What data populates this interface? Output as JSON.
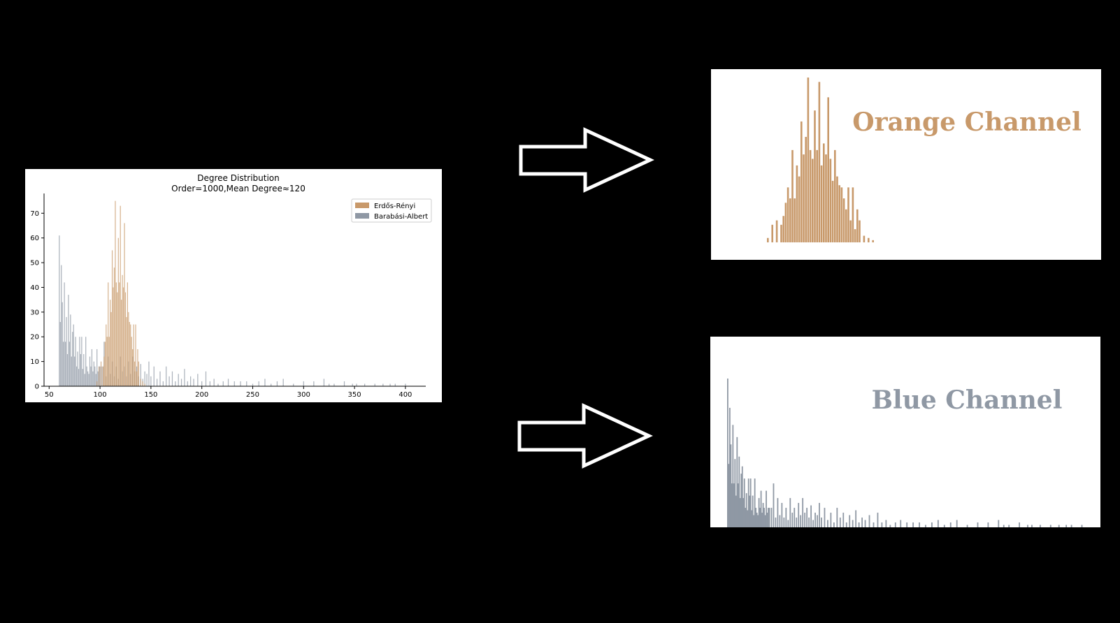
{
  "colors": {
    "background": "#000000",
    "orange": "#c8996a",
    "blue": "#8f98a4",
    "axis": "#000000"
  },
  "icons": [
    "right-arrow-icon",
    "right-arrow-icon"
  ],
  "chart_data": {
    "type": "bar",
    "title": "Degree Distribution",
    "subtitle": "Order=1000,Mean Degree≈120",
    "xlim": [
      45,
      420
    ],
    "ylim": [
      0,
      78
    ],
    "xticks": [
      50,
      100,
      150,
      200,
      250,
      300,
      350,
      400
    ],
    "yticks": [
      0,
      10,
      20,
      30,
      40,
      50,
      60,
      70
    ],
    "legend_position": "top-right",
    "series": [
      {
        "name": "Erdős-Rényi",
        "color": "#c8996a",
        "x": [
          97,
          99,
          101,
          103,
          104,
          105,
          106,
          107,
          108,
          109,
          110,
          111,
          112,
          113,
          114,
          115,
          116,
          117,
          118,
          119,
          120,
          121,
          122,
          123,
          124,
          125,
          126,
          127,
          128,
          129,
          130,
          131,
          132,
          133,
          134,
          135,
          136,
          137,
          138,
          140,
          142,
          144
        ],
        "values": [
          2,
          8,
          10,
          8,
          12,
          18,
          25,
          20,
          42,
          20,
          35,
          30,
          55,
          40,
          48,
          75,
          42,
          38,
          60,
          42,
          73,
          35,
          45,
          40,
          66,
          38,
          28,
          42,
          30,
          26,
          25,
          20,
          15,
          25,
          10,
          25,
          6,
          15,
          10,
          3,
          2,
          1
        ]
      },
      {
        "name": "Barabási-Albert",
        "color": "#8f98a4",
        "x": [
          60,
          61,
          62,
          63,
          64,
          65,
          66,
          67,
          68,
          69,
          70,
          71,
          72,
          73,
          74,
          75,
          76,
          77,
          78,
          79,
          80,
          81,
          82,
          83,
          84,
          85,
          86,
          87,
          88,
          89,
          90,
          91,
          92,
          93,
          94,
          95,
          96,
          97,
          98,
          99,
          100,
          102,
          104,
          106,
          108,
          110,
          112,
          114,
          116,
          118,
          120,
          122,
          124,
          126,
          128,
          130,
          132,
          134,
          136,
          138,
          140,
          142,
          144,
          146,
          148,
          150,
          153,
          156,
          159,
          162,
          165,
          168,
          171,
          174,
          177,
          180,
          183,
          186,
          189,
          192,
          196,
          200,
          204,
          208,
          212,
          216,
          221,
          226,
          232,
          238,
          244,
          250,
          256,
          262,
          268,
          274,
          280,
          290,
          300,
          310,
          320,
          325,
          330,
          340,
          348,
          352,
          360,
          370,
          378,
          385,
          390,
          400
        ],
        "values": [
          61,
          26,
          49,
          34,
          18,
          42,
          18,
          28,
          13,
          37,
          18,
          29,
          12,
          22,
          25,
          12,
          20,
          8,
          14,
          7,
          20,
          13,
          20,
          7,
          13,
          5,
          20,
          8,
          6,
          5,
          12,
          8,
          15,
          6,
          10,
          8,
          5,
          15,
          6,
          8,
          8,
          8,
          18,
          4,
          12,
          5,
          10,
          4,
          8,
          3,
          12,
          6,
          8,
          4,
          10,
          5,
          12,
          6,
          8,
          4,
          9,
          3,
          6,
          5,
          10,
          4,
          8,
          3,
          6,
          2,
          8,
          4,
          6,
          2,
          5,
          3,
          7,
          2,
          4,
          3,
          5,
          2,
          6,
          2,
          3,
          1,
          2,
          3,
          2,
          2,
          2,
          1,
          2,
          3,
          1,
          2,
          3,
          1,
          2,
          2,
          3,
          1,
          1,
          2,
          1,
          1,
          1,
          1,
          1,
          1,
          1,
          1
        ]
      }
    ]
  },
  "orange_channel": {
    "title": "Orange Channel"
  },
  "blue_channel": {
    "title": "Blue Channel"
  }
}
